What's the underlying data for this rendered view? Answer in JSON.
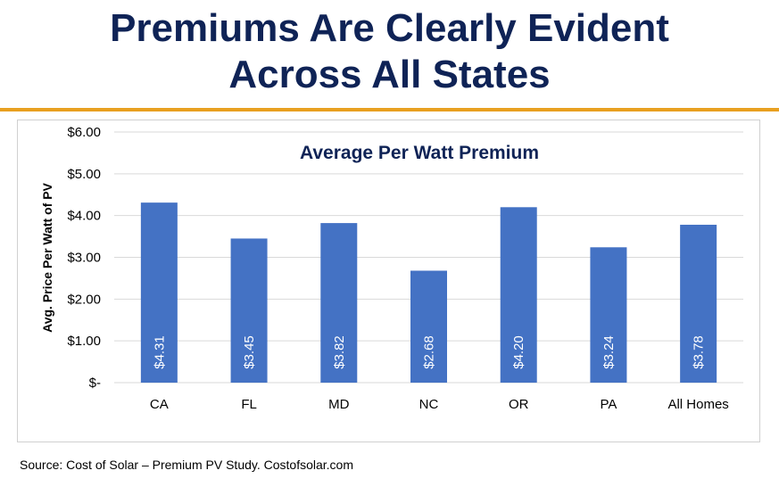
{
  "header": {
    "title_line1": "Premiums Are Clearly Evident",
    "title_line2": "Across All States"
  },
  "footer": {
    "source": "Source: Cost of Solar – Premium PV Study. Costofsolar.com"
  },
  "colors": {
    "title": "#0f2356",
    "rule": "#e8a020",
    "bar": "#4472c4",
    "grid": "#d9d9d9"
  },
  "chart_data": {
    "type": "bar",
    "title": "Average Per Watt Premium",
    "xlabel": "",
    "ylabel": "Avg. Price Per Watt of PV",
    "categories": [
      "CA",
      "FL",
      "MD",
      "NC",
      "OR",
      "PA",
      "All Homes"
    ],
    "values": [
      4.31,
      3.45,
      3.82,
      2.68,
      4.2,
      3.24,
      3.78
    ],
    "data_labels": [
      "$4.31",
      "$3.45",
      "$3.82",
      "$2.68",
      "$4.20",
      "$3.24",
      "$3.78"
    ],
    "ylim": [
      0,
      6
    ],
    "yticks": [
      0,
      1,
      2,
      3,
      4,
      5,
      6
    ],
    "ytick_labels": [
      "$-",
      "$1.00",
      "$2.00",
      "$3.00",
      "$4.00",
      "$5.00",
      "$6.00"
    ],
    "grid": true,
    "legend": "none"
  }
}
